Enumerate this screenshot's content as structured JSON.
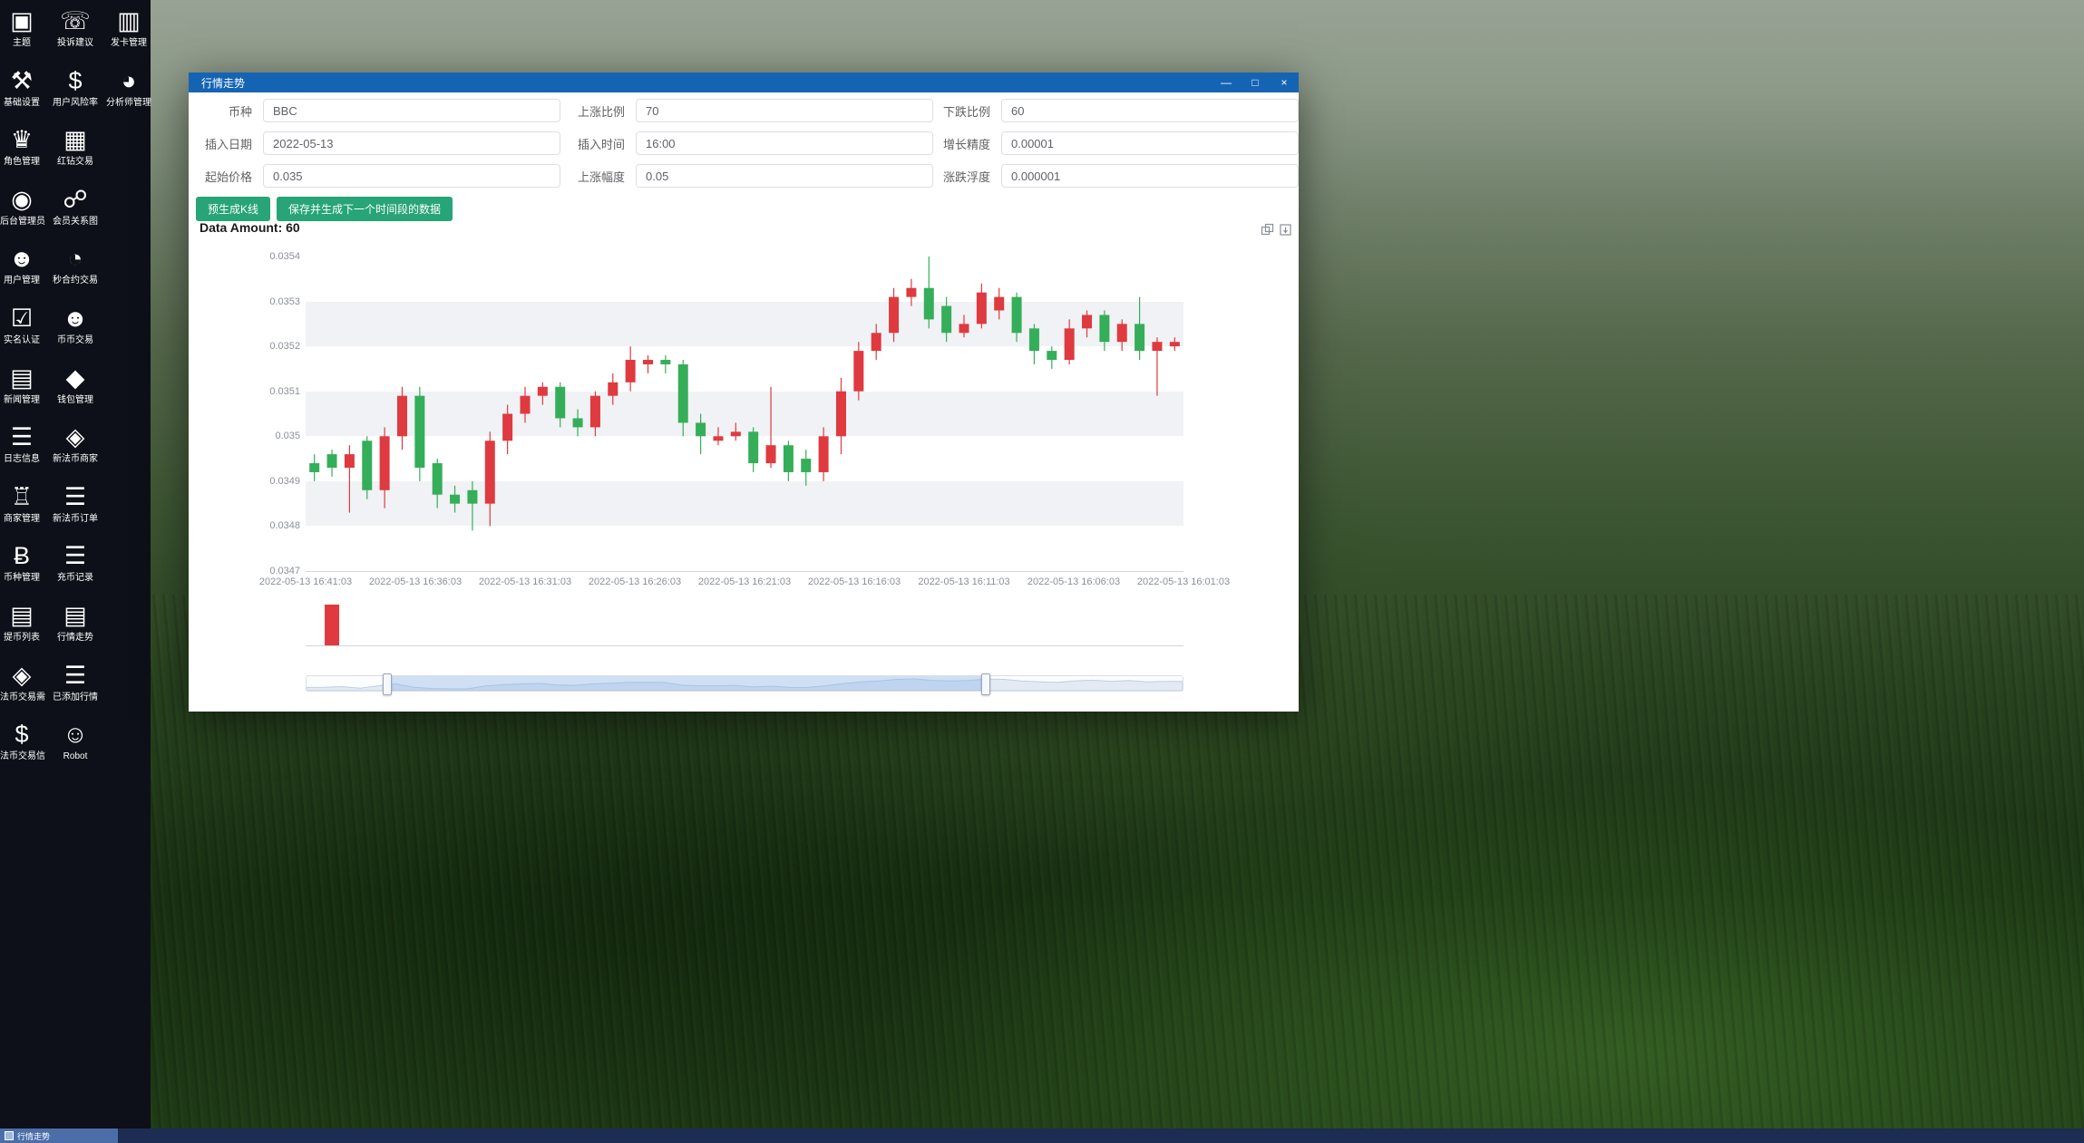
{
  "window": {
    "title": "行情走势",
    "controls": {
      "minimize": "—",
      "maximize": "□",
      "close": "×"
    }
  },
  "sidebar": {
    "columns": [
      {
        "items": [
          {
            "key": "theme",
            "label": "主题",
            "icon": "theme-monitor-icon"
          },
          {
            "key": "basic-settings",
            "label": "基础设置",
            "icon": "basic-settings-icon"
          },
          {
            "key": "role-manage",
            "label": "角色管理",
            "icon": "role-manage-icon"
          },
          {
            "key": "admin-users",
            "label": "后台管理员",
            "icon": "admin-user-icon"
          },
          {
            "key": "user-manage",
            "label": "用户管理",
            "icon": "user-manage-icon"
          },
          {
            "key": "realname-verify",
            "label": "实名认证",
            "icon": "realname-verify-icon"
          },
          {
            "key": "news-manage",
            "label": "新闻管理",
            "icon": "news-manage-icon"
          },
          {
            "key": "log-info",
            "label": "日志信息",
            "icon": "log-info-icon"
          },
          {
            "key": "merchant-manage",
            "label": "商家管理",
            "icon": "merchant-manage-icon"
          },
          {
            "key": "coin-manage",
            "label": "币种管理",
            "icon": "coin-manage-icon"
          },
          {
            "key": "withdraw-list",
            "label": "提币列表",
            "icon": "withdraw-list-icon"
          },
          {
            "key": "fiat-trade-need",
            "label": "法币交易需",
            "icon": "fiat-trade-need-icon"
          },
          {
            "key": "fiat-trade-info",
            "label": "法币交易信",
            "icon": "fiat-trade-info-icon"
          }
        ]
      },
      {
        "items": [
          {
            "key": "feedback",
            "label": "投诉建议",
            "icon": "feedback-phone-icon"
          },
          {
            "key": "user-risk",
            "label": "用户风险率",
            "icon": "user-risk-icon"
          },
          {
            "key": "red-diamond-trade",
            "label": "红钻交易",
            "icon": "red-diamond-trade-icon"
          },
          {
            "key": "member-relation",
            "label": "会员关系图",
            "icon": "member-relation-icon"
          },
          {
            "key": "second-contract",
            "label": "秒合约交易",
            "icon": "second-contract-icon"
          },
          {
            "key": "coin-trade",
            "label": "币币交易",
            "icon": "coin-trade-icon"
          },
          {
            "key": "wallet-manage",
            "label": "钱包管理",
            "icon": "wallet-manage-icon"
          },
          {
            "key": "new-fiat-merchant",
            "label": "新法币商家",
            "icon": "new-fiat-merchant-icon"
          },
          {
            "key": "new-fiat-order",
            "label": "新法币订单",
            "icon": "new-fiat-order-icon"
          },
          {
            "key": "deposit-record",
            "label": "充币记录",
            "icon": "deposit-record-icon"
          },
          {
            "key": "market-trend",
            "label": "行情走势",
            "icon": "market-trend-icon"
          },
          {
            "key": "added-market",
            "label": "已添加行情",
            "icon": "added-market-icon"
          },
          {
            "key": "robot",
            "label": "Robot",
            "icon": "robot-icon"
          }
        ]
      },
      {
        "items": [
          {
            "key": "card-issue",
            "label": "发卡管理",
            "icon": "card-issue-icon"
          },
          {
            "key": "analyst-manage",
            "label": "分析师管理",
            "icon": "analyst-manage-icon"
          }
        ]
      }
    ]
  },
  "form": {
    "rows": [
      [
        {
          "key": "currency",
          "label": "币种",
          "value": "BBC"
        },
        {
          "key": "rise-ratio",
          "label": "上涨比例",
          "value": "70"
        },
        {
          "key": "fall-ratio",
          "label": "下跌比例",
          "value": "60"
        }
      ],
      [
        {
          "key": "insert-date",
          "label": "插入日期",
          "value": "2022-05-13"
        },
        {
          "key": "insert-time",
          "label": "插入时间",
          "value": "16:00"
        },
        {
          "key": "growth-precision",
          "label": "增长精度",
          "value": "0.00001"
        }
      ],
      [
        {
          "key": "start-price",
          "label": "起始价格",
          "value": "0.035"
        },
        {
          "key": "rise-amplitude",
          "label": "上涨幅度",
          "value": "0.05"
        },
        {
          "key": "fluctuation",
          "label": "涨跌浮度",
          "value": "0.000001"
        }
      ]
    ],
    "buttons": [
      {
        "key": "pregenerate-kline",
        "label": "预生成K线"
      },
      {
        "key": "save-generate-next",
        "label": "保存并生成下一个时间段的数据"
      }
    ]
  },
  "data_amount_label": "Data Amount: 60",
  "chart_data": {
    "type": "candlestick",
    "title": "",
    "up_color": "#de3a3f",
    "down_color": "#35ae59",
    "volume_bar_color": "#de3a3f",
    "ylim": [
      0.0347,
      0.0354
    ],
    "y_ticks": [
      "0.0354",
      "0.0353",
      "0.0352",
      "0.0351",
      "0.035",
      "0.0349",
      "0.0348",
      "0.0347"
    ],
    "x_ticks": [
      "2022-05-13 16:41:03",
      "2022-05-13 16:36:03",
      "2022-05-13 16:31:03",
      "2022-05-13 16:26:03",
      "2022-05-13 16:21:03",
      "2022-05-13 16:16:03",
      "2022-05-13 16:11:03",
      "2022-05-13 16:06:03",
      "2022-05-13 16:01:03"
    ],
    "grid": "horizontal-bands",
    "legend_position": "none",
    "candles": [
      [
        0.03494,
        0.03492,
        0.0349,
        0.03496
      ],
      [
        0.03496,
        0.03493,
        0.03491,
        0.03497
      ],
      [
        0.03493,
        0.03496,
        0.03483,
        0.03498
      ],
      [
        0.03499,
        0.03488,
        0.03486,
        0.035
      ],
      [
        0.03488,
        0.035,
        0.03484,
        0.03502
      ],
      [
        0.035,
        0.03509,
        0.03497,
        0.03511
      ],
      [
        0.03509,
        0.03493,
        0.0349,
        0.03511
      ],
      [
        0.03494,
        0.03487,
        0.03484,
        0.03495
      ],
      [
        0.03487,
        0.03485,
        0.03483,
        0.03489
      ],
      [
        0.03488,
        0.03485,
        0.03479,
        0.0349
      ],
      [
        0.03485,
        0.03499,
        0.0348,
        0.03501
      ],
      [
        0.03499,
        0.03505,
        0.03496,
        0.03507
      ],
      [
        0.03505,
        0.03509,
        0.03503,
        0.03511
      ],
      [
        0.03509,
        0.03511,
        0.03507,
        0.03512
      ],
      [
        0.03511,
        0.03504,
        0.03502,
        0.03512
      ],
      [
        0.03504,
        0.03502,
        0.035,
        0.03506
      ],
      [
        0.03502,
        0.03509,
        0.035,
        0.0351
      ],
      [
        0.03509,
        0.03512,
        0.03507,
        0.03514
      ],
      [
        0.03512,
        0.03517,
        0.0351,
        0.0352
      ],
      [
        0.03516,
        0.03517,
        0.03514,
        0.03518
      ],
      [
        0.03517,
        0.03516,
        0.03514,
        0.03518
      ],
      [
        0.03516,
        0.03503,
        0.035,
        0.03517
      ],
      [
        0.03503,
        0.035,
        0.03496,
        0.03505
      ],
      [
        0.03499,
        0.035,
        0.03498,
        0.03502
      ],
      [
        0.035,
        0.03501,
        0.03499,
        0.03503
      ],
      [
        0.03501,
        0.03494,
        0.03492,
        0.03502
      ],
      [
        0.03494,
        0.03498,
        0.03493,
        0.03511
      ],
      [
        0.03498,
        0.03492,
        0.0349,
        0.03499
      ],
      [
        0.03495,
        0.03492,
        0.03489,
        0.03497
      ],
      [
        0.03492,
        0.035,
        0.0349,
        0.03502
      ],
      [
        0.035,
        0.0351,
        0.03496,
        0.03513
      ],
      [
        0.0351,
        0.03519,
        0.03508,
        0.03521
      ],
      [
        0.03519,
        0.03523,
        0.03517,
        0.03525
      ],
      [
        0.03523,
        0.03531,
        0.03521,
        0.03533
      ],
      [
        0.03531,
        0.03533,
        0.03529,
        0.03535
      ],
      [
        0.03533,
        0.03526,
        0.03524,
        0.0354
      ],
      [
        0.03529,
        0.03523,
        0.03521,
        0.03531
      ],
      [
        0.03523,
        0.03525,
        0.03522,
        0.03527
      ],
      [
        0.03525,
        0.03532,
        0.03524,
        0.03534
      ],
      [
        0.03528,
        0.03531,
        0.03526,
        0.03533
      ],
      [
        0.03531,
        0.03523,
        0.03521,
        0.03532
      ],
      [
        0.03524,
        0.03519,
        0.03516,
        0.03525
      ],
      [
        0.03519,
        0.03517,
        0.03515,
        0.0352
      ],
      [
        0.03517,
        0.03524,
        0.03516,
        0.03526
      ],
      [
        0.03524,
        0.03527,
        0.03522,
        0.03528
      ],
      [
        0.03527,
        0.03521,
        0.03519,
        0.03528
      ],
      [
        0.03521,
        0.03525,
        0.03519,
        0.03526
      ],
      [
        0.03525,
        0.03519,
        0.03517,
        0.03531
      ],
      [
        0.03519,
        0.03521,
        0.03509,
        0.03522
      ],
      [
        0.0352,
        0.03521,
        0.03519,
        0.03522
      ]
    ],
    "volumes": [
      0,
      1,
      0,
      0,
      0,
      0,
      0,
      0,
      0,
      0,
      0,
      0,
      0,
      0,
      0,
      0,
      0,
      0,
      0,
      0,
      0,
      0,
      0,
      0,
      0,
      0,
      0,
      0,
      0,
      0,
      0,
      0,
      0,
      0,
      0,
      0,
      0,
      0,
      0,
      0,
      0,
      0,
      0,
      0,
      0,
      0,
      0,
      0,
      0,
      0
    ],
    "datazoom": {
      "start_pct": 9.1,
      "end_pct": 77.3
    }
  },
  "taskbar": {
    "active_item": "行情走势"
  }
}
